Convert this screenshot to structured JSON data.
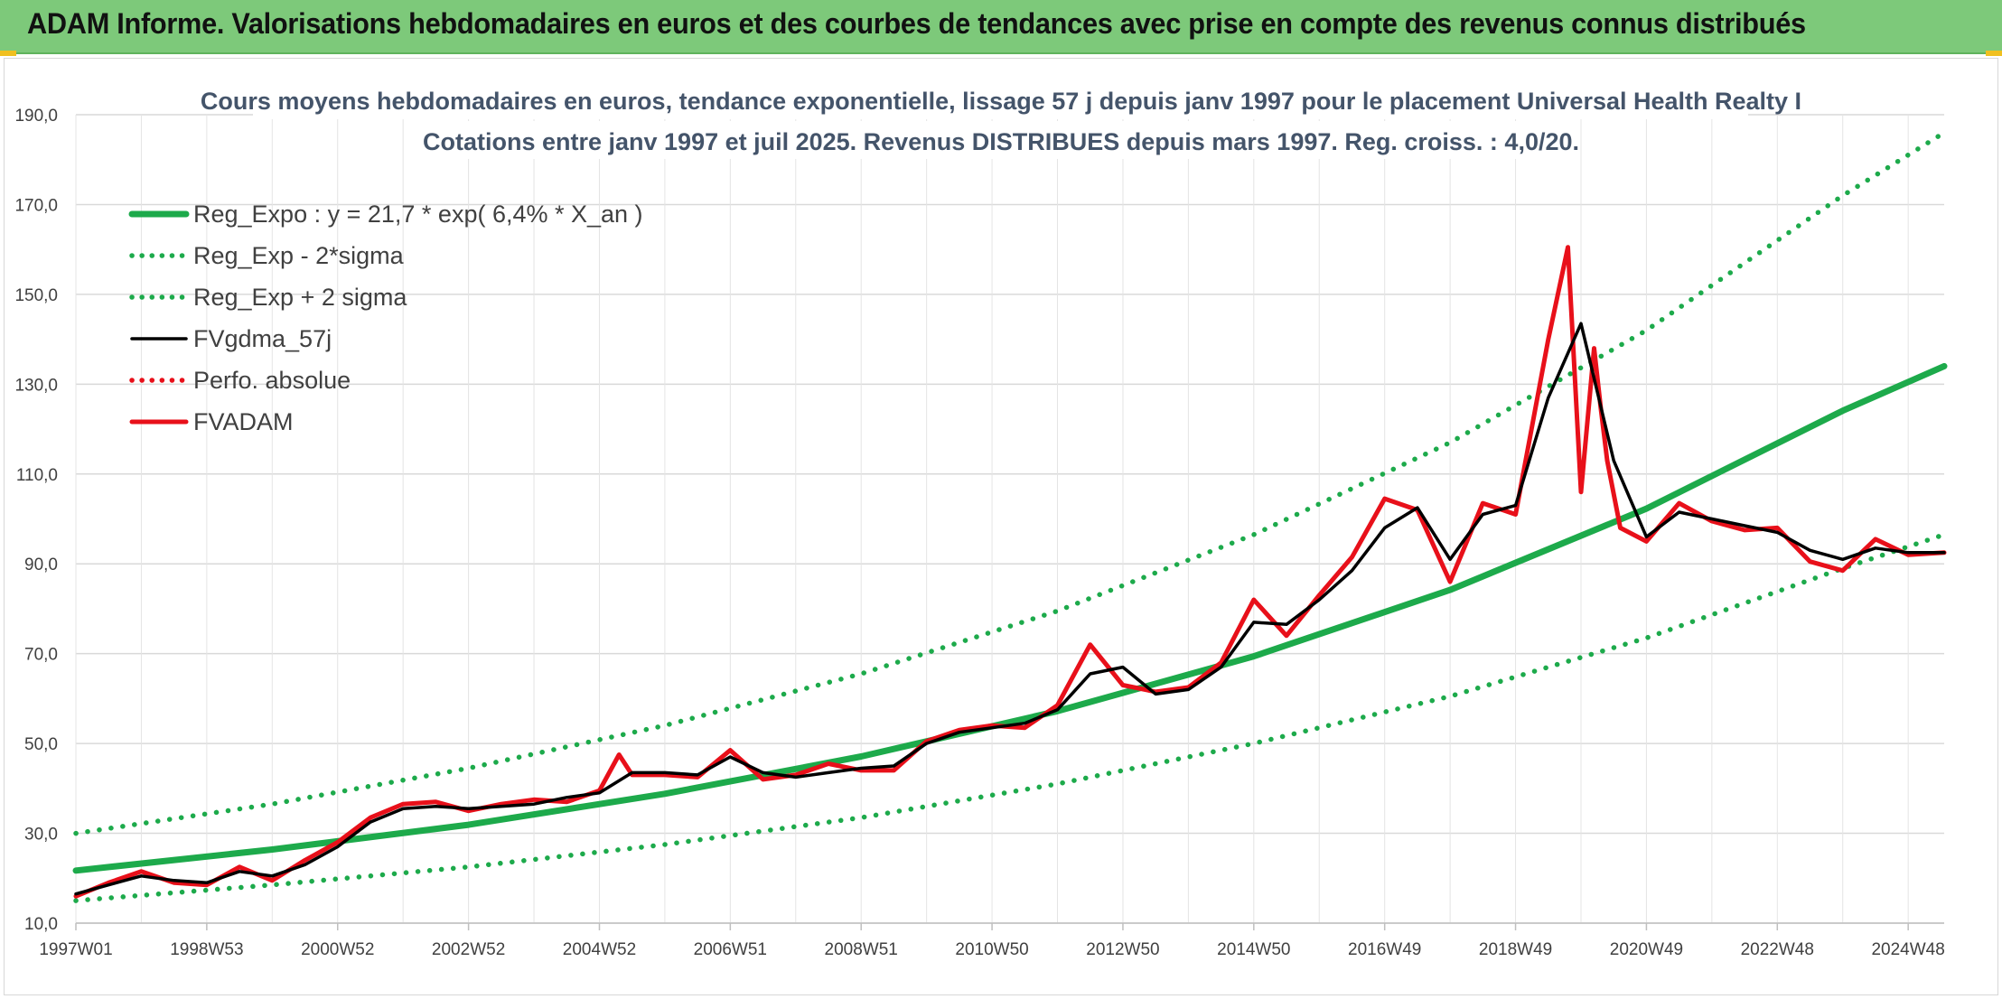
{
  "banner": {
    "title": "ADAM Informe. Valorisations hebdomadaires en euros et des courbes de tendances avec prise en compte des revenus connus distribués"
  },
  "colors": {
    "banner": "#7dc97a",
    "reg_expo": "#1daa4b",
    "fvgdma": "#000000",
    "fvadam": "#e8101a",
    "perfo": "#e8101a"
  },
  "chart_data": {
    "type": "line",
    "title": "Cours moyens hebdomadaires en euros, tendance exponentielle, lissage 57 j depuis janv 1997 pour le placement Universal Health Realty I",
    "subtitle": "Cotations entre janv 1997 et juil 2025. Revenus DISTRIBUES depuis mars 1997. Reg. croiss. : 4,0/20.",
    "xlabel": "",
    "ylabel": "",
    "xlim": [
      1997.0,
      2025.55
    ],
    "ylim": [
      10,
      190
    ],
    "y_ticks": [
      "10,0",
      "30,0",
      "50,0",
      "70,0",
      "90,0",
      "110,0",
      "130,0",
      "150,0",
      "170,0",
      "190,0"
    ],
    "x_ticks": [
      {
        "year": 1997.0,
        "label": "1997W01"
      },
      {
        "year": 1999.0,
        "label": "1998W53"
      },
      {
        "year": 2001.0,
        "label": "2000W52"
      },
      {
        "year": 2003.0,
        "label": "2002W52"
      },
      {
        "year": 2005.0,
        "label": "2004W52"
      },
      {
        "year": 2007.0,
        "label": "2006W51"
      },
      {
        "year": 2009.0,
        "label": "2008W51"
      },
      {
        "year": 2011.0,
        "label": "2010W50"
      },
      {
        "year": 2013.0,
        "label": "2012W50"
      },
      {
        "year": 2015.0,
        "label": "2014W50"
      },
      {
        "year": 2017.0,
        "label": "2016W49"
      },
      {
        "year": 2019.0,
        "label": "2018W49"
      },
      {
        "year": 2021.0,
        "label": "2020W49"
      },
      {
        "year": 2023.0,
        "label": "2022W48"
      },
      {
        "year": 2025.0,
        "label": "2024W48"
      }
    ],
    "grid": true,
    "legend_position": "top-left",
    "series": [
      {
        "name": "Reg_Expo : y = 21,7 * exp( 6,4% *  X_an )",
        "style": "solid-thick",
        "color": "#1daa4b",
        "x": [
          1997,
          2000,
          2003,
          2006,
          2009,
          2012,
          2015,
          2018,
          2021,
          2024,
          2025.55
        ],
        "y": [
          21.7,
          26.4,
          31.9,
          38.8,
          47.1,
          57.2,
          69.4,
          84.2,
          102.3,
          124.1,
          134.0
        ]
      },
      {
        "name": "Reg_Exp - 2*sigma",
        "style": "dotted",
        "color": "#1daa4b",
        "x": [
          1997,
          2000,
          2003,
          2006,
          2009,
          2012,
          2015,
          2018,
          2021,
          2024,
          2025.55
        ],
        "y": [
          15.0,
          18.5,
          22.5,
          27.5,
          33.5,
          41.0,
          50.0,
          60.5,
          73.5,
          89.0,
          96.5
        ]
      },
      {
        "name": "Reg_Exp + 2 sigma",
        "style": "dotted",
        "color": "#1daa4b",
        "x": [
          1997,
          2000,
          2003,
          2006,
          2009,
          2012,
          2015,
          2018,
          2021,
          2024,
          2025.55
        ],
        "y": [
          30.0,
          36.5,
          44.5,
          54.0,
          65.5,
          79.5,
          96.5,
          117.0,
          142.0,
          172.0,
          186.0
        ]
      },
      {
        "name": "FVgdma_57j",
        "style": "solid",
        "color": "#000000",
        "x": [
          1997.0,
          1997.5,
          1998.0,
          1998.5,
          1999.0,
          1999.5,
          2000.0,
          2000.5,
          2001.0,
          2001.5,
          2002.0,
          2002.5,
          2003.0,
          2003.5,
          2004.0,
          2004.5,
          2005.0,
          2005.5,
          2006.0,
          2006.5,
          2007.0,
          2007.5,
          2008.0,
          2008.5,
          2009.0,
          2009.5,
          2010.0,
          2010.5,
          2011.0,
          2011.5,
          2012.0,
          2012.5,
          2013.0,
          2013.5,
          2014.0,
          2014.5,
          2015.0,
          2015.5,
          2016.0,
          2016.5,
          2017.0,
          2017.5,
          2018.0,
          2018.5,
          2019.0,
          2019.5,
          2020.0,
          2020.5,
          2021.0,
          2021.5,
          2022.0,
          2022.5,
          2023.0,
          2023.5,
          2024.0,
          2024.5,
          2025.0,
          2025.55
        ],
        "y": [
          16.5,
          18.5,
          20.5,
          19.5,
          19.0,
          21.5,
          20.5,
          23.0,
          27.0,
          32.5,
          35.5,
          36.0,
          35.5,
          36.0,
          36.5,
          38.0,
          39.0,
          43.5,
          43.5,
          43.0,
          47.0,
          43.5,
          42.5,
          43.5,
          44.5,
          45.0,
          50.0,
          52.5,
          53.5,
          54.5,
          57.5,
          65.5,
          67.0,
          61.0,
          62.0,
          67.0,
          77.0,
          76.5,
          82.0,
          88.5,
          98.0,
          102.5,
          91.0,
          101.0,
          103.0,
          127.0,
          143.5,
          113.0,
          96.0,
          101.5,
          100.0,
          98.5,
          97.0,
          93.0,
          91.0,
          93.5,
          92.5,
          92.5
        ]
      },
      {
        "name": "Perfo. absolue",
        "style": "dotted",
        "color": "#e8101a",
        "x": [],
        "y": []
      },
      {
        "name": "FVADAM",
        "style": "solid-thick",
        "color": "#e8101a",
        "x": [
          1997.0,
          1997.5,
          1998.0,
          1998.5,
          1999.0,
          1999.5,
          2000.0,
          2000.5,
          2001.0,
          2001.5,
          2002.0,
          2002.5,
          2003.0,
          2003.5,
          2004.0,
          2004.5,
          2005.0,
          2005.3,
          2005.5,
          2006.0,
          2006.5,
          2007.0,
          2007.5,
          2008.0,
          2008.5,
          2009.0,
          2009.5,
          2010.0,
          2010.5,
          2011.0,
          2011.5,
          2012.0,
          2012.5,
          2013.0,
          2013.5,
          2014.0,
          2014.5,
          2015.0,
          2015.5,
          2016.0,
          2016.5,
          2017.0,
          2017.5,
          2018.0,
          2018.5,
          2019.0,
          2019.5,
          2019.8,
          2020.0,
          2020.2,
          2020.3,
          2020.4,
          2020.6,
          2021.0,
          2021.5,
          2022.0,
          2022.5,
          2023.0,
          2023.5,
          2024.0,
          2024.5,
          2025.0,
          2025.55
        ],
        "y": [
          16.0,
          19.0,
          21.5,
          19.0,
          18.5,
          22.5,
          19.5,
          24.0,
          28.0,
          33.5,
          36.5,
          37.0,
          35.0,
          36.5,
          37.5,
          37.0,
          39.5,
          47.5,
          43.0,
          43.0,
          42.5,
          48.5,
          42.0,
          43.0,
          45.5,
          44.0,
          44.0,
          50.5,
          53.0,
          54.0,
          53.5,
          58.5,
          72.0,
          63.0,
          61.5,
          62.5,
          68.0,
          82.0,
          74.0,
          83.0,
          91.5,
          104.5,
          102.0,
          86.0,
          103.5,
          101.0,
          140.0,
          160.5,
          106.0,
          138.0,
          125.0,
          113.0,
          98.0,
          95.0,
          103.5,
          99.5,
          97.5,
          98.0,
          90.5,
          88.5,
          95.5,
          92.0,
          92.5
        ]
      }
    ]
  }
}
